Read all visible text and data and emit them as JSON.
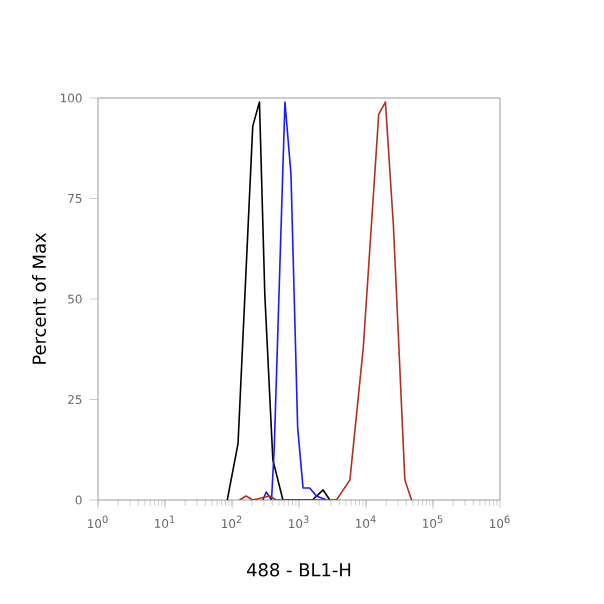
{
  "chart_data": {
    "type": "line",
    "xlabel": "488 - BL1-H",
    "ylabel": "Percent of Max",
    "log": "x",
    "xlim": [
      1,
      1000000
    ],
    "ylim": [
      0,
      100
    ],
    "xticks": [
      {
        "value": 1,
        "label": "10$^{0}$"
      },
      {
        "value": 10,
        "label": "10$^{1}$"
      },
      {
        "value": 100,
        "label": "10$^{2}$"
      },
      {
        "value": 1000,
        "label": "10$^{3}$"
      },
      {
        "value": 10000,
        "label": "10$^{4}$"
      },
      {
        "value": 100000,
        "label": "10$^{5}$"
      },
      {
        "value": 1000000,
        "label": "10$^{6}$"
      }
    ],
    "yticks": [
      0,
      25,
      50,
      75,
      100
    ],
    "grid": false,
    "marker": "none",
    "line_style": "solid",
    "series": [
      {
        "color": "#000000",
        "x": [
          85,
          123,
          204,
          257,
          309,
          407,
          575,
          1585,
          2291,
          2884
        ],
        "values": [
          0,
          14,
          93,
          99,
          51,
          10,
          0,
          0,
          2.5,
          0
        ]
      },
      {
        "color": "#1a1aff",
        "x": [
          288,
          324,
          389,
          427,
          617,
          759,
          955,
          1148,
          1445,
          1820,
          2570
        ],
        "values": [
          0,
          2,
          0,
          13,
          99,
          81,
          18,
          3,
          3,
          1,
          0
        ]
      },
      {
        "color": "#b03020",
        "x": [
          129,
          162,
          204,
          363,
          457,
          3631,
          5754,
          9120,
          15488,
          19498,
          25704,
          38019,
          47863
        ],
        "values": [
          0,
          1,
          0,
          1,
          0,
          0,
          5,
          38,
          96,
          99,
          68,
          5,
          0
        ]
      }
    ]
  }
}
